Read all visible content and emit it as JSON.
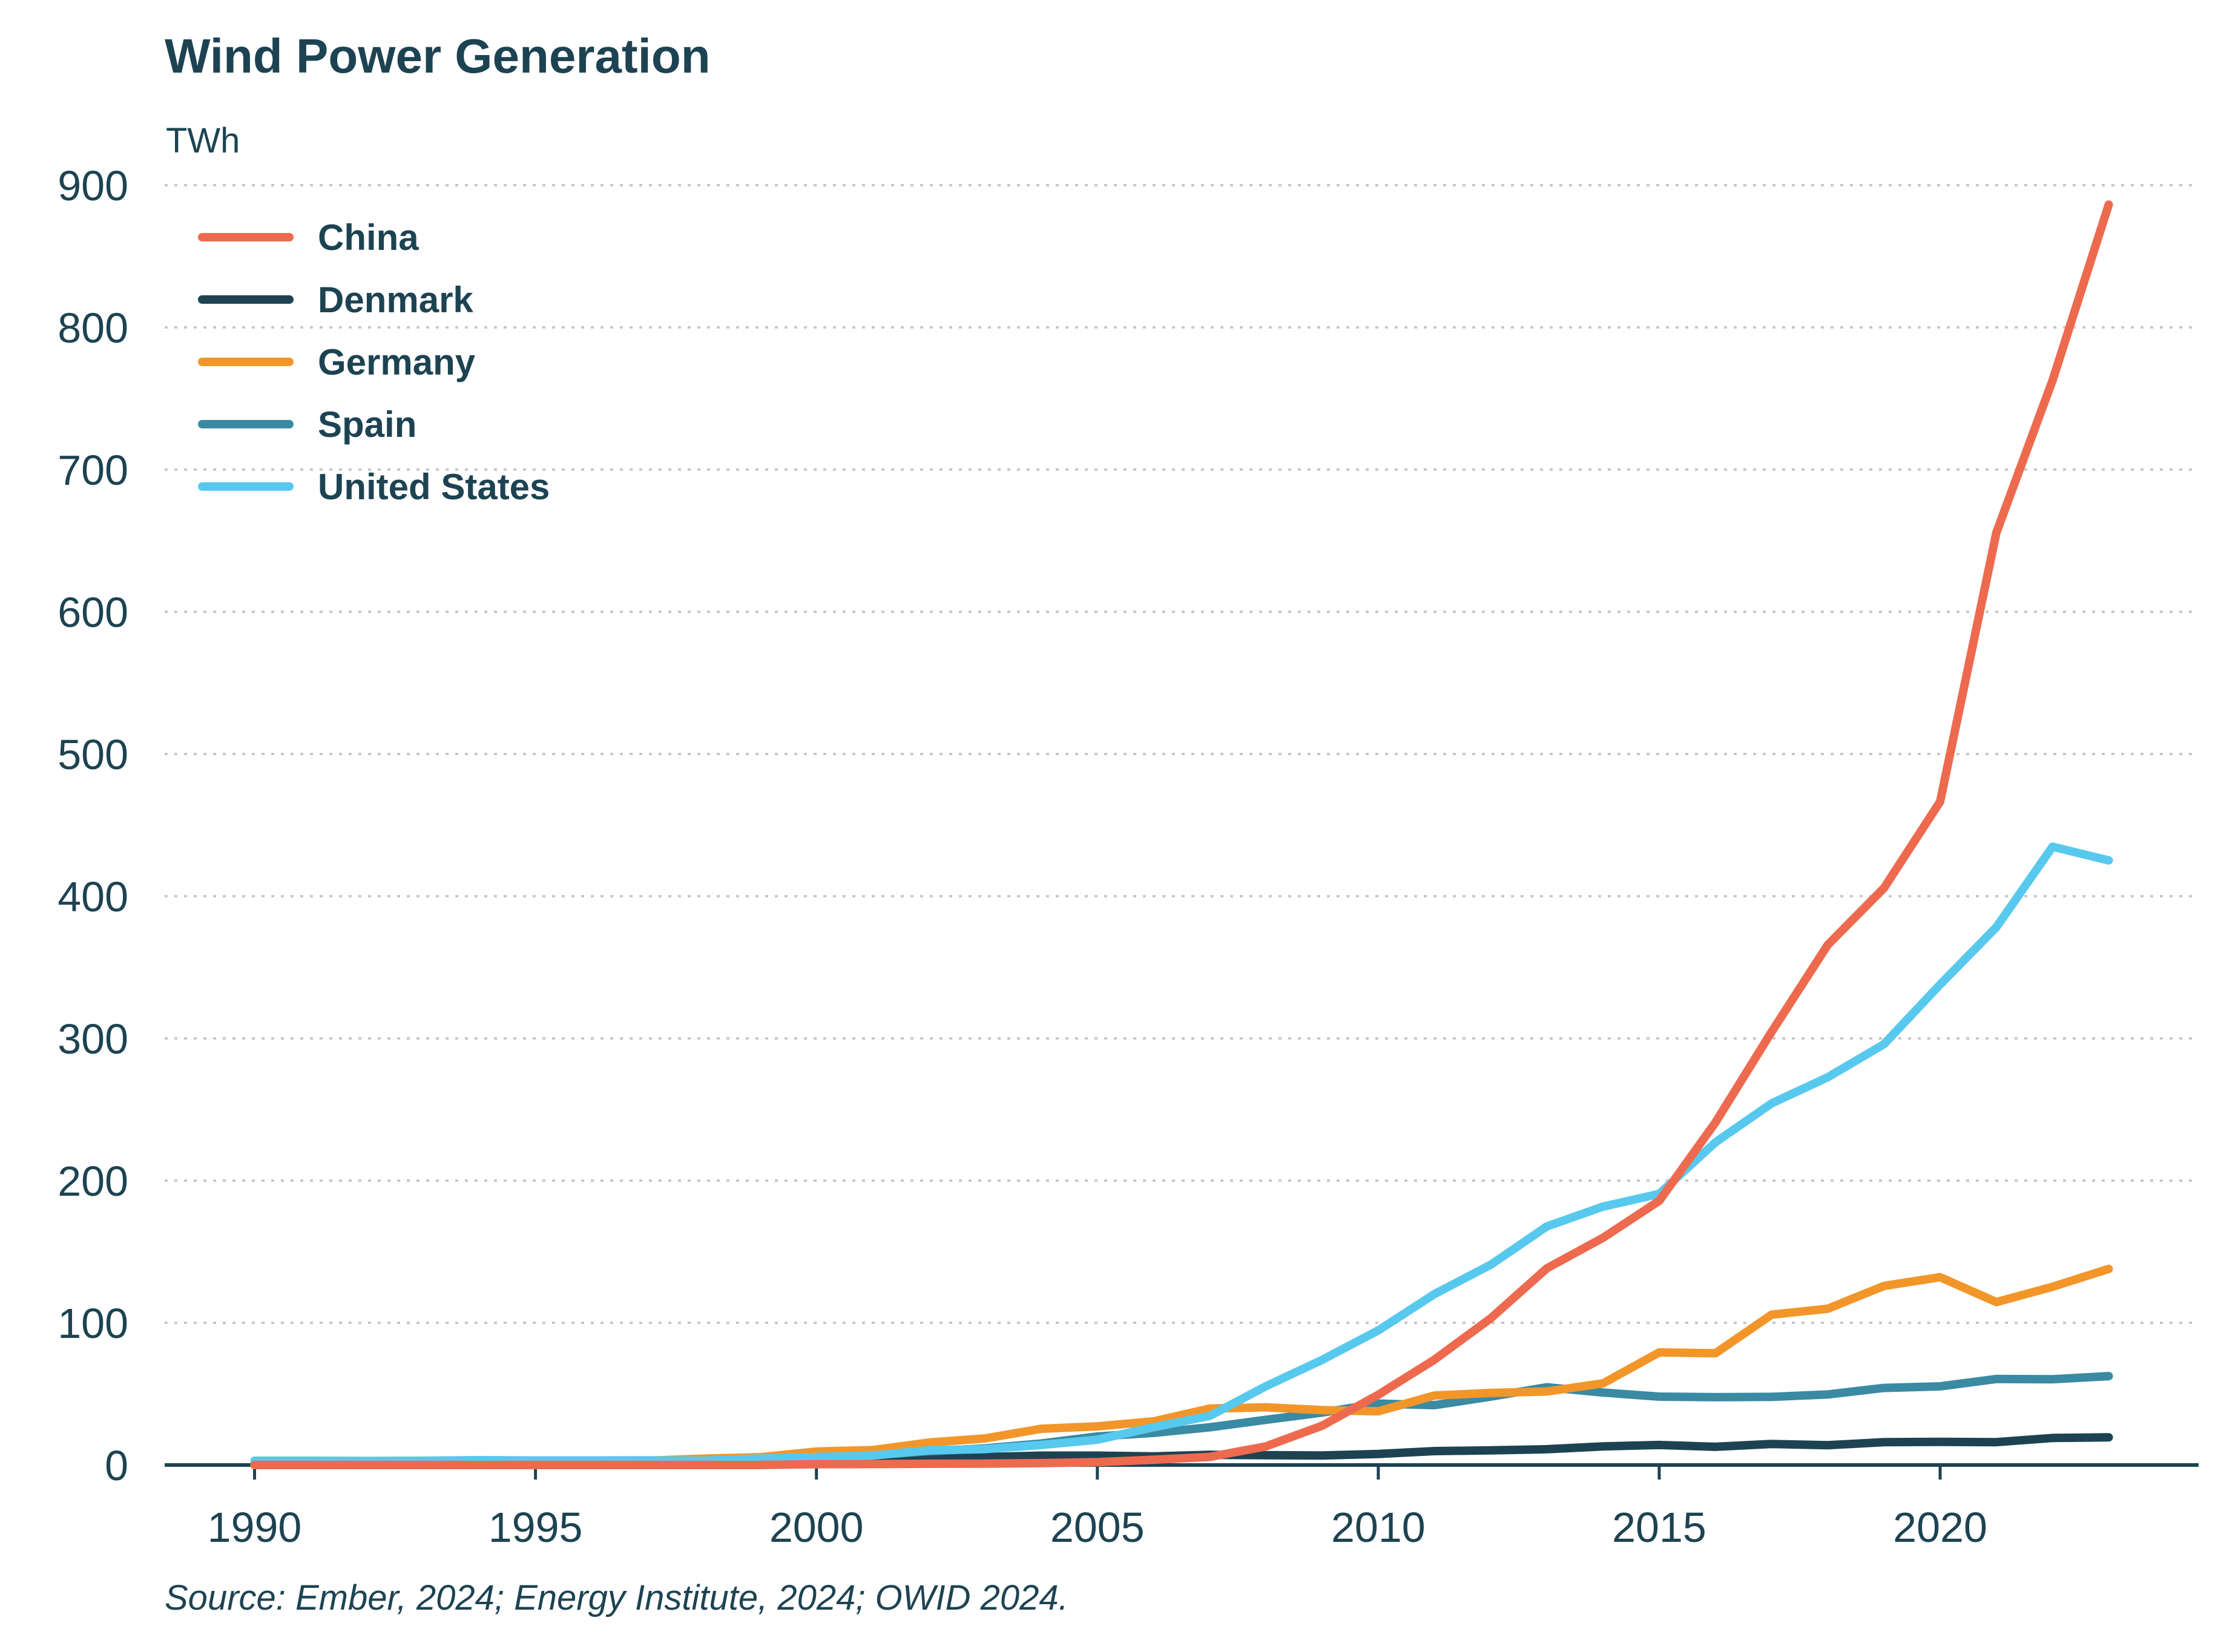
{
  "chart_data": {
    "type": "line",
    "title": "Wind Power Generation",
    "ylabel": "TWh",
    "xlabel": "",
    "source": "Source: Ember, 2024; Energy Institute, 2024; OWID 2024.",
    "xlim": [
      1988.4,
      2024.6
    ],
    "ylim": [
      0,
      900
    ],
    "x_ticks": [
      "1990",
      "1995",
      "2000",
      "2005",
      "2010",
      "2015",
      "2020"
    ],
    "y_ticks": [
      "0",
      "100",
      "200",
      "300",
      "400",
      "500",
      "600",
      "700",
      "800",
      "900"
    ],
    "legend_position": "top-left",
    "x": [
      1990,
      1991,
      1992,
      1993,
      1994,
      1995,
      1996,
      1997,
      1998,
      1999,
      2000,
      2001,
      2002,
      2003,
      2004,
      2005,
      2006,
      2007,
      2008,
      2009,
      2010,
      2011,
      2012,
      2013,
      2014,
      2015,
      2016,
      2017,
      2018,
      2019,
      2020,
      2021,
      2022,
      2023
    ],
    "series": [
      {
        "name": "Denmark",
        "color": "#1d4352",
        "values": [
          0.6,
          0.7,
          0.9,
          1.0,
          1.1,
          1.2,
          1.2,
          1.9,
          2.8,
          3.0,
          4.2,
          4.3,
          4.9,
          5.6,
          6.6,
          6.6,
          6.1,
          7.2,
          6.9,
          6.7,
          7.8,
          9.8,
          10.3,
          11.1,
          13.1,
          14.1,
          12.8,
          14.8,
          13.9,
          16.1,
          16.3,
          16.1,
          19.0,
          19.5
        ]
      },
      {
        "name": "Spain",
        "color": "#3a8aa3",
        "values": [
          0,
          0,
          0.1,
          0.1,
          0.1,
          0.3,
          0.4,
          0.7,
          1.4,
          2.7,
          4.7,
          6.9,
          9.6,
          11.7,
          15.1,
          20.1,
          22.6,
          26.5,
          31.8,
          36.9,
          43.2,
          42.1,
          48.1,
          54.7,
          51.0,
          48.1,
          47.7,
          47.9,
          49.6,
          54.2,
          55.3,
          60.5,
          60.3,
          62.5
        ]
      },
      {
        "name": "Germany",
        "color": "#f2962a",
        "values": [
          0,
          0.1,
          0.2,
          0.6,
          0.9,
          1.5,
          2.0,
          3.0,
          4.5,
          5.5,
          9.5,
          10.5,
          15.8,
          18.7,
          25.5,
          27.2,
          30.7,
          39.7,
          40.6,
          38.6,
          37.8,
          48.9,
          50.7,
          51.7,
          57.4,
          79.2,
          78.6,
          105.7,
          109.9,
          125.9,
          132.1,
          114.6,
          125.3,
          137.9
        ]
      },
      {
        "name": "United States",
        "color": "#58c9ee",
        "values": [
          3.0,
          3.0,
          2.9,
          3.0,
          3.4,
          3.2,
          3.2,
          3.3,
          3.0,
          4.5,
          5.6,
          6.7,
          10.4,
          11.2,
          14.1,
          17.8,
          26.6,
          34.5,
          55.4,
          73.9,
          94.7,
          120.2,
          140.8,
          167.8,
          181.7,
          190.7,
          226.9,
          254.3,
          272.7,
          295.9,
          337.9,
          378.2,
          434.8,
          425.2
        ]
      },
      {
        "name": "China",
        "color": "#ee6a4f",
        "values": [
          0,
          0,
          0,
          0,
          0,
          0,
          0,
          0,
          0,
          0,
          0.6,
          0.7,
          0.9,
          1.0,
          1.3,
          2.0,
          3.7,
          5.7,
          13.1,
          27.6,
          49.4,
          74.1,
          103.1,
          138.3,
          159.8,
          185.8,
          240.9,
          304.6,
          365.8,
          405.7,
          466.5,
          655.6,
          762.7,
          886.3
        ]
      }
    ],
    "legend_order": [
      "China",
      "Denmark",
      "Germany",
      "Spain",
      "United States"
    ]
  }
}
